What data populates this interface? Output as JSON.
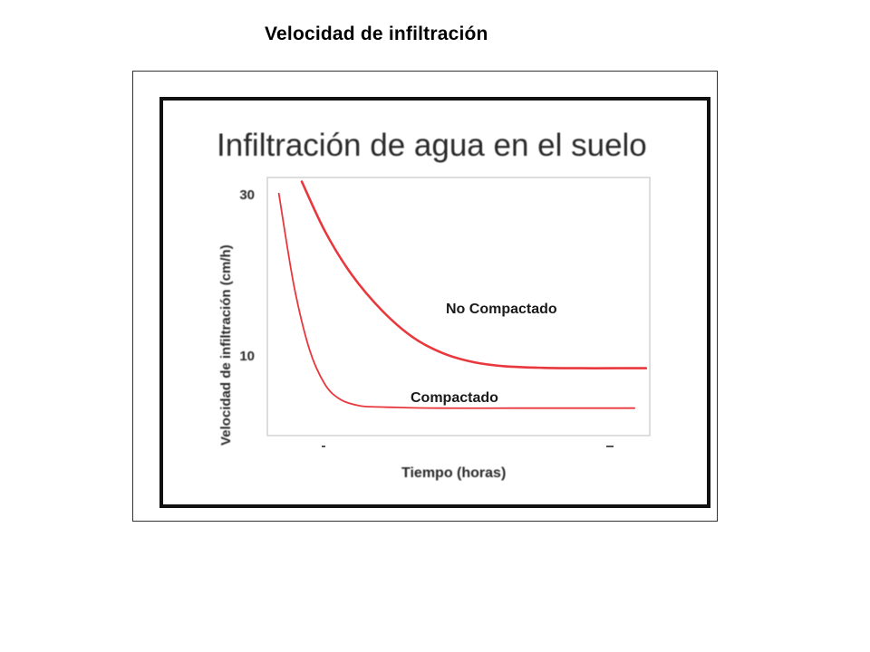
{
  "slide": {
    "title": "Velocidad de infiltración"
  },
  "chart_data": {
    "type": "line",
    "title": "Infiltración de agua en el suelo",
    "xlabel": "Tiempo (horas)",
    "ylabel": "Velocidad de infiltración (cm/h)",
    "yticks": [
      "30",
      "10"
    ],
    "xlim": [
      0,
      1
    ],
    "ylim": [
      0,
      32
    ],
    "grid": false,
    "legend": "none",
    "line_color": "#e8383d",
    "series": [
      {
        "name": "No Compactado",
        "points": [
          [
            0.09,
            31.5
          ],
          [
            0.15,
            25.4
          ],
          [
            0.22,
            20.0
          ],
          [
            0.3,
            15.5
          ],
          [
            0.38,
            12.2
          ],
          [
            0.46,
            10.2
          ],
          [
            0.54,
            9.1
          ],
          [
            0.62,
            8.6
          ],
          [
            0.72,
            8.4
          ],
          [
            0.82,
            8.35
          ],
          [
            0.92,
            8.35
          ],
          [
            0.99,
            8.35
          ]
        ]
      },
      {
        "name": "Compactado",
        "points": [
          [
            0.03,
            30.0
          ],
          [
            0.07,
            18.5
          ],
          [
            0.11,
            10.7
          ],
          [
            0.15,
            6.4
          ],
          [
            0.19,
            4.5
          ],
          [
            0.24,
            3.7
          ],
          [
            0.29,
            3.55
          ],
          [
            0.33,
            3.5
          ],
          [
            0.45,
            3.4
          ],
          [
            0.65,
            3.4
          ],
          [
            0.85,
            3.4
          ],
          [
            0.96,
            3.4
          ]
        ]
      }
    ]
  }
}
